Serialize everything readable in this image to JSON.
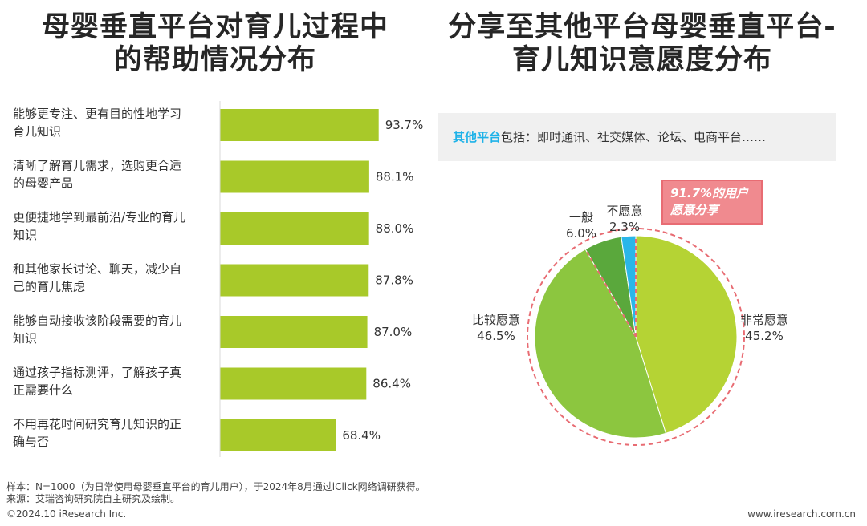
{
  "titles": {
    "left_line1": "母婴垂直平台对育儿过程中",
    "left_line2": "的帮助情况分布",
    "right_line1": "分享至其他平台母婴垂直平台-",
    "right_line2": "育儿知识意愿度分布"
  },
  "note": {
    "keyword": "其他平台",
    "rest": "包括：即时通讯、社交媒体、论坛、电商平台……"
  },
  "callout": {
    "line1": "91.7%的用户",
    "line2": "愿意分享"
  },
  "footer": {
    "sample": "样本：N=1000（为日常使用母婴垂直平台的育儿用户），于2024年8月通过iClick网络调研获得。",
    "source": "来源：艾瑞咨询研究院自主研究及绘制。",
    "copyright": "©2024.10 iResearch Inc.",
    "website": "www.iresearch.com.cn"
  },
  "colors": {
    "bar": "#a8c929",
    "very_willing": "#b5d334",
    "fairly_willing": "#8cc63f",
    "neutral": "#5aa83c",
    "unwilling": "#2ab6e8",
    "highlight": "#e86c73"
  },
  "chart_data": [
    {
      "type": "bar",
      "orientation": "horizontal",
      "categories": [
        [
          "能够更专注、更有目的性地学习",
          "育儿知识"
        ],
        [
          "清晰了解育儿需求，选购更合适",
          "的母婴产品"
        ],
        [
          "更便捷地学到最前沿/专业的育儿",
          "知识"
        ],
        [
          "和其他家长讨论、聊天，减少自",
          "己的育儿焦虑"
        ],
        [
          "能够自动接收该阶段需要的育儿",
          "知识"
        ],
        [
          "通过孩子指标测评，了解孩子真",
          "正需要什么"
        ],
        [
          "不用再花时间研究育儿知识的正",
          "确与否"
        ]
      ],
      "values": [
        93.7,
        88.1,
        88.0,
        87.8,
        87.0,
        86.4,
        68.4
      ],
      "value_labels": [
        "93.7%",
        "88.1%",
        "88.0%",
        "87.8%",
        "87.0%",
        "86.4%",
        "68.4%"
      ],
      "xlim": [
        0,
        100
      ]
    },
    {
      "type": "pie",
      "slices": [
        {
          "label": "非常愿意",
          "value": 45.2,
          "value_label": "45.2%",
          "color": "#b5d334"
        },
        {
          "label": "比较愿意",
          "value": 46.5,
          "value_label": "46.5%",
          "color": "#8cc63f"
        },
        {
          "label": "一般",
          "value": 6.0,
          "value_label": "6.0%",
          "color": "#5aa83c"
        },
        {
          "label": "不愿意",
          "value": 2.3,
          "value_label": "2.3%",
          "color": "#2ab6e8"
        }
      ]
    }
  ]
}
